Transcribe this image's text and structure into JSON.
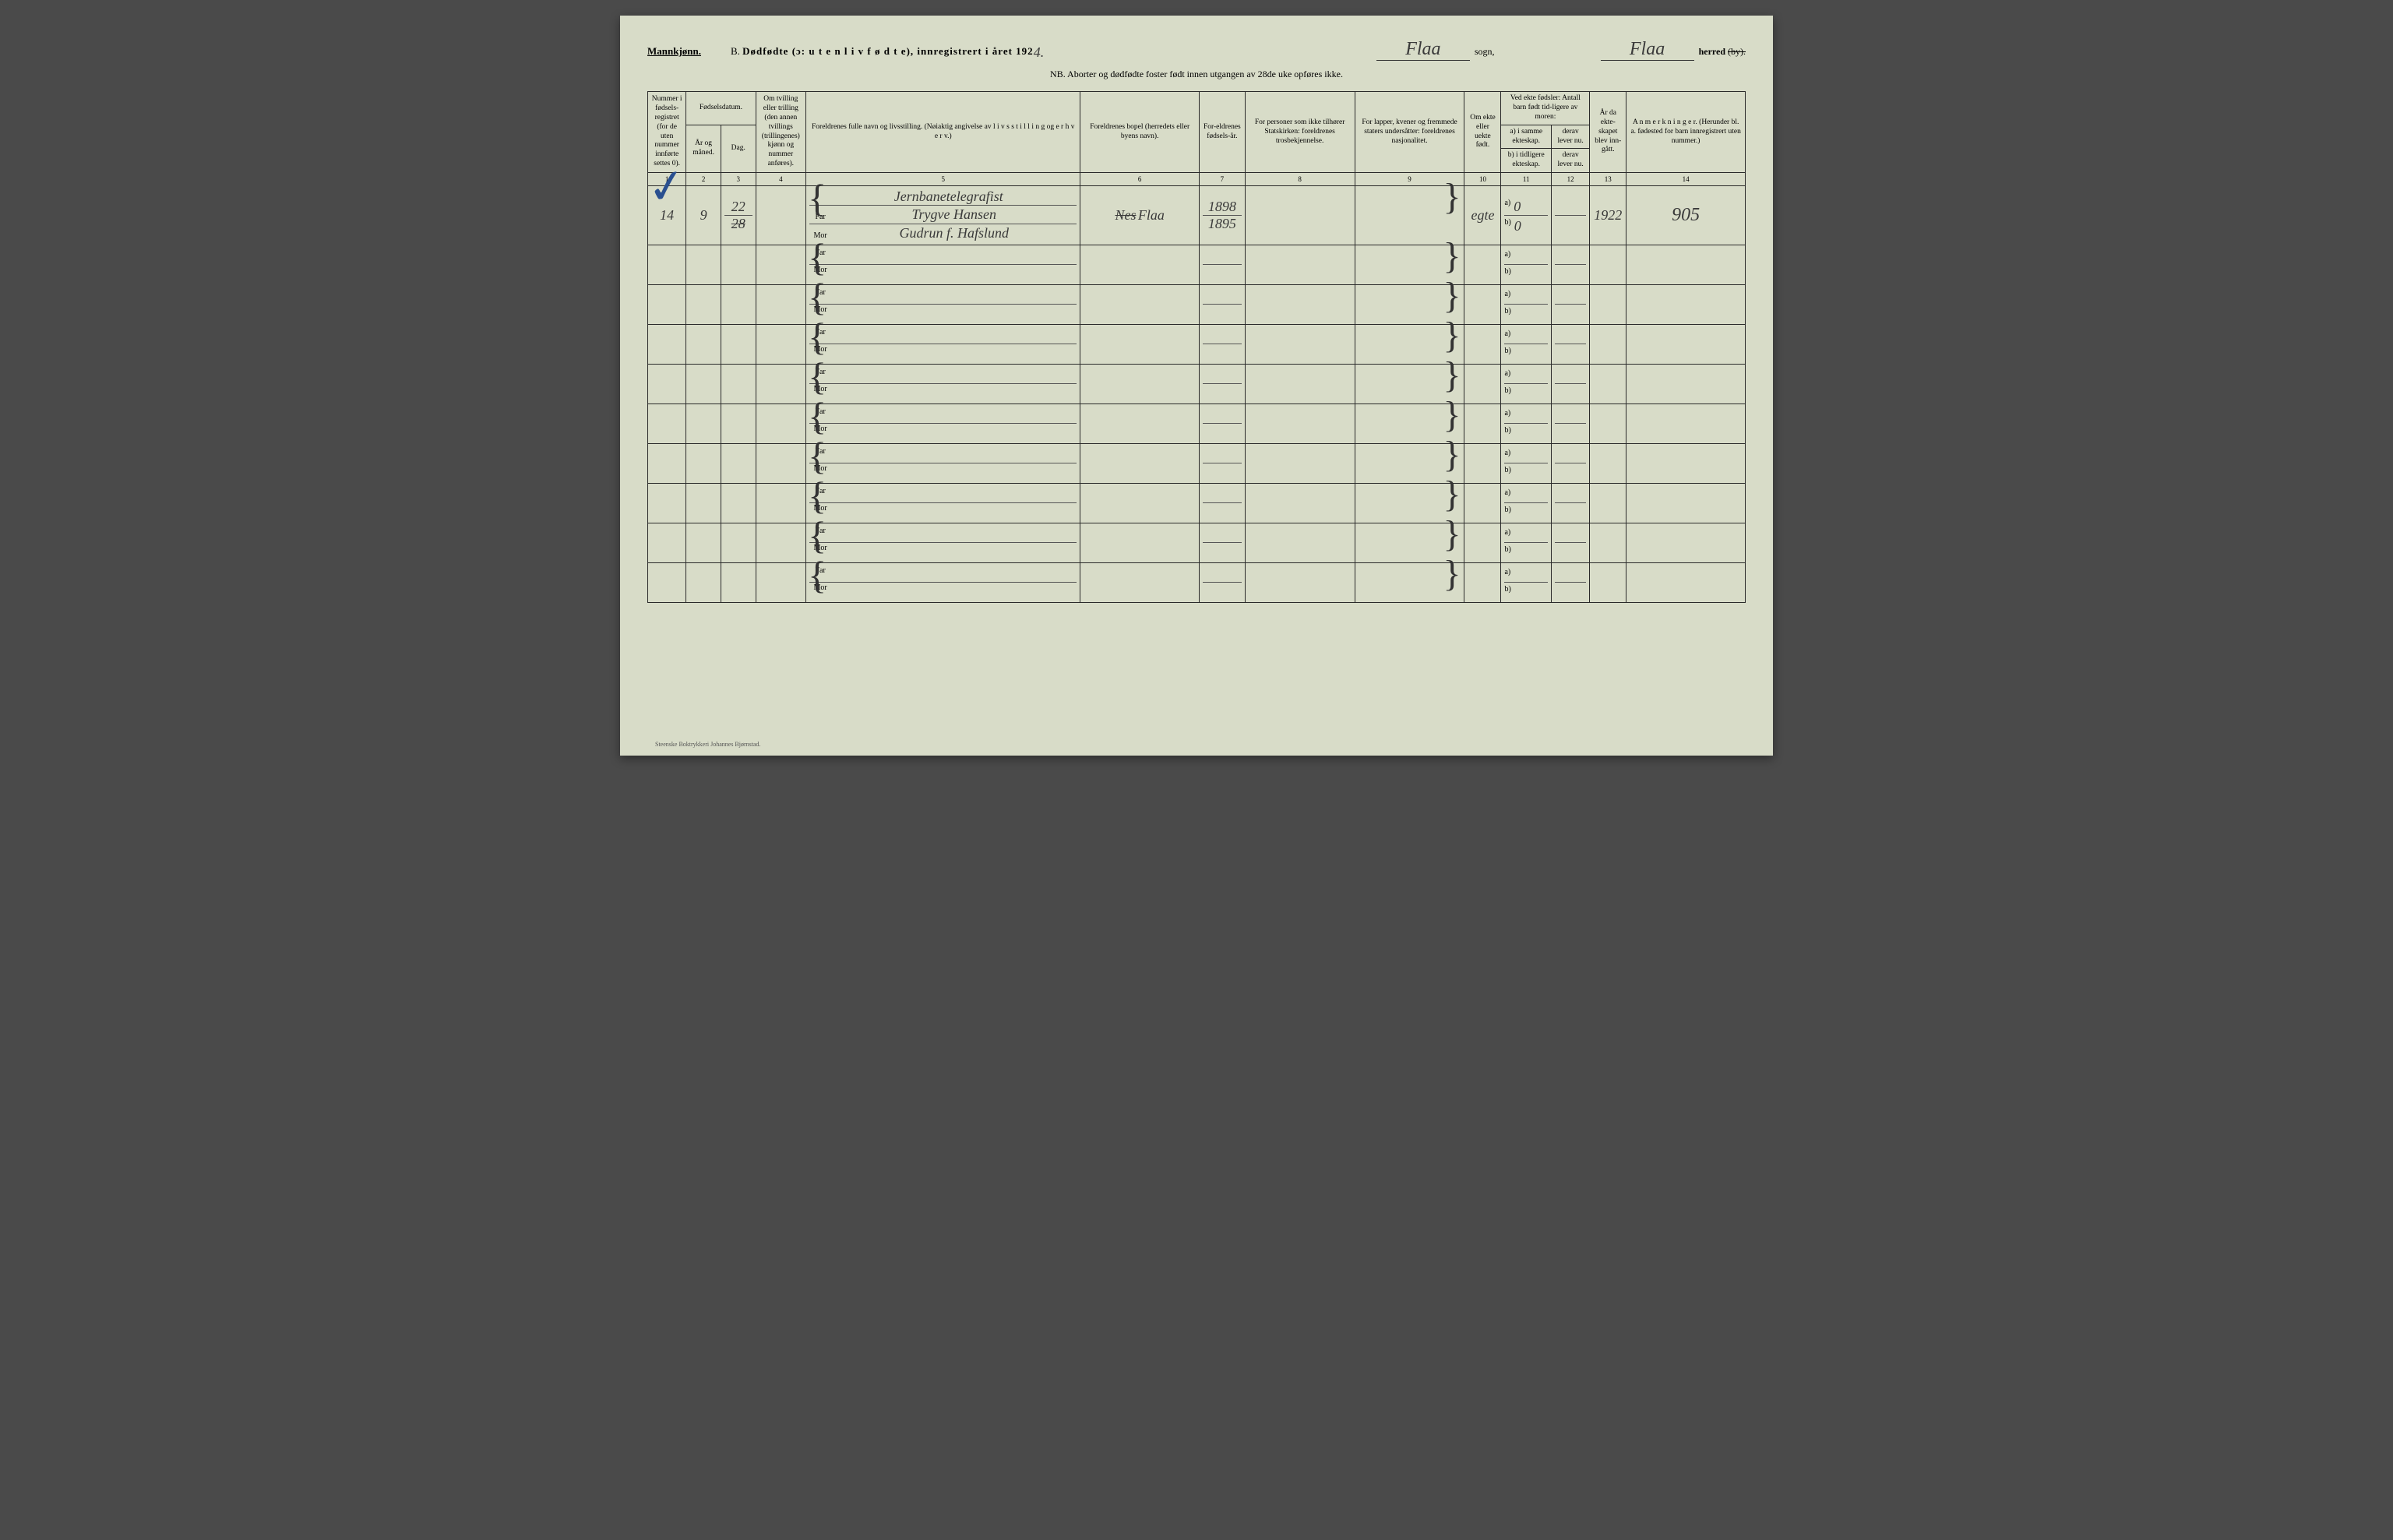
{
  "header": {
    "gender": "Mannkjønn.",
    "title_prefix": "B.",
    "title_main": "Dødfødte (ɔ: u t e n  l i v f ø d t e), innregistrert i året 192",
    "year_digit": "4.",
    "sogn_value": "Flaa",
    "sogn_label": "sogn,",
    "herred_value": "Flaa",
    "herred_label": "herred",
    "herred_struck": "(by).",
    "nb": "NB.  Aborter og dødfødte foster født innen utgangen av 28de uke opføres ikke."
  },
  "columns": {
    "c1": "Nummer i fødsels-registret (for de uten nummer innførte settes 0).",
    "c23_top": "Fødselsdatum.",
    "c2": "År og måned.",
    "c3": "Dag.",
    "c4": "Om tvilling eller trilling (den annen tvillings (trillingenes) kjønn og nummer anføres).",
    "c5": "Foreldrenes fulle navn og livsstilling. (Nøiaktig angivelse av l i v s s t i l l i n g og e r h v e r v.)",
    "c6": "Foreldrenes bopel (herredets eller byens navn).",
    "c7": "For-eldrenes fødsels-år.",
    "c8": "For personer som ikke tilhører Statskirken: foreldrenes trosbekjennelse.",
    "c9": "For lapper, kvener og fremmede staters undersåtter: foreldrenes nasjonalitet.",
    "c10": "Om ekte eller uekte født.",
    "c11_12_top": "Ved ekte fødsler: Antall barn født tid-ligere av moren:",
    "c11a": "a) i samme ekteskap.",
    "c11b": "b) i tidligere ekteskap.",
    "c12a": "derav lever nu.",
    "c12b": "derav lever nu.",
    "c13": "År da ekte-skapet blev inn-gått.",
    "c14": "A n m e r k n i n g e r. (Herunder bl. a. fødested for barn innregistrert uten nummer.)"
  },
  "colnums": [
    "1",
    "2",
    "3",
    "4",
    "5",
    "6",
    "7",
    "8",
    "9",
    "10",
    "11",
    "12",
    "13",
    "14"
  ],
  "labels": {
    "far": "Far",
    "mor": "Mor",
    "a": "a)",
    "b": "b)"
  },
  "row1": {
    "num": "14",
    "year_month": "9",
    "day_top": "22",
    "day_bot": "28",
    "occupation": "Jernbanetelegrafist",
    "far_name": "Trygve Hansen",
    "mor_name": "Gudrun f. Hafslund",
    "bopel_struck": "Nes",
    "bopel": "Flaa",
    "far_year": "1898",
    "mor_year": "1895",
    "ekte": "egte",
    "a_val": "0",
    "b_val": "0",
    "marriage_year": "1922",
    "anm": "905"
  },
  "footer": "Steenske Boktrykkeri Johannes Bjørnstad."
}
